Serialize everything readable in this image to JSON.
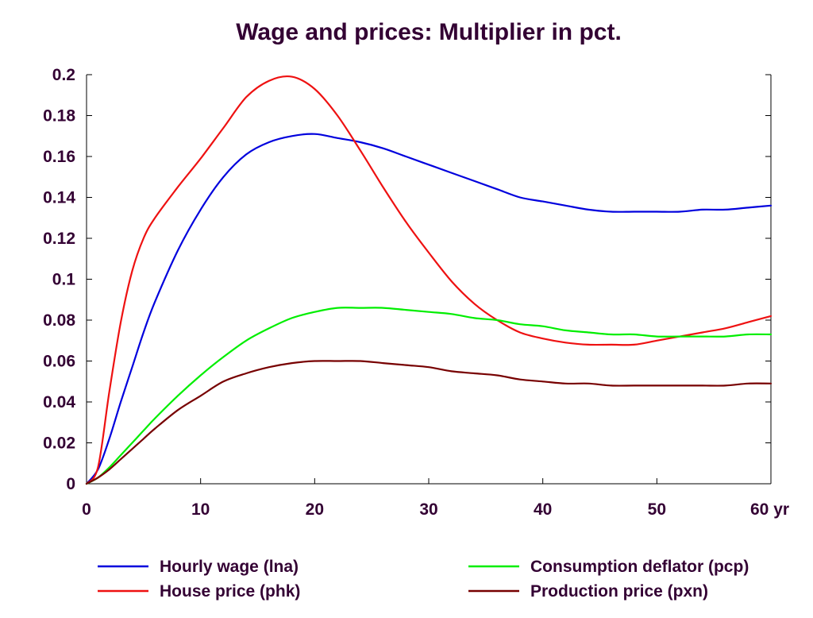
{
  "chart_data": {
    "type": "line",
    "title": "Wage and prices: Multiplier in pct.",
    "xlabel": "",
    "ylabel": "",
    "xlim": [
      0,
      60
    ],
    "ylim": [
      0,
      0.2
    ],
    "x_ticks": [
      0,
      10,
      20,
      30,
      40,
      50,
      60
    ],
    "x_tick_labels": [
      "0",
      "10",
      "20",
      "30",
      "40",
      "50",
      "60 yr"
    ],
    "y_ticks": [
      0,
      0.02,
      0.04,
      0.06,
      0.08,
      0.1,
      0.12,
      0.14,
      0.16,
      0.18,
      0.2
    ],
    "y_tick_labels": [
      "0",
      "0.02",
      "0.04",
      "0.06",
      "0.08",
      "0.1",
      "0.12",
      "0.14",
      "0.16",
      "0.18",
      "0.2"
    ],
    "grid": false,
    "legend_position": "bottom",
    "x": [
      0,
      1,
      2,
      3,
      4,
      5,
      6,
      8,
      10,
      12,
      14,
      16,
      18,
      20,
      22,
      24,
      26,
      28,
      30,
      32,
      34,
      36,
      38,
      40,
      42,
      44,
      46,
      48,
      50,
      52,
      54,
      56,
      58,
      60
    ],
    "series": [
      {
        "name": "Hourly wage (lna)",
        "color": "#0000dd",
        "values": [
          0,
          0.007,
          0.022,
          0.04,
          0.057,
          0.074,
          0.089,
          0.114,
          0.134,
          0.15,
          0.161,
          0.167,
          0.17,
          0.171,
          0.169,
          0.167,
          0.164,
          0.16,
          0.156,
          0.152,
          0.148,
          0.144,
          0.14,
          0.138,
          0.136,
          0.134,
          0.133,
          0.133,
          0.133,
          0.133,
          0.134,
          0.134,
          0.135,
          0.136
        ]
      },
      {
        "name": "House price (phk)",
        "color": "#ee1111",
        "values": [
          0,
          0.008,
          0.045,
          0.079,
          0.104,
          0.12,
          0.13,
          0.145,
          0.159,
          0.174,
          0.189,
          0.197,
          0.199,
          0.193,
          0.18,
          0.163,
          0.145,
          0.128,
          0.113,
          0.099,
          0.088,
          0.08,
          0.074,
          0.071,
          0.069,
          0.068,
          0.068,
          0.068,
          0.07,
          0.072,
          0.074,
          0.076,
          0.079,
          0.082
        ]
      },
      {
        "name": "Consumption deflator (pcp)",
        "color": "#00ee00",
        "values": [
          0,
          0.003,
          0.008,
          0.014,
          0.02,
          0.026,
          0.032,
          0.043,
          0.053,
          0.062,
          0.07,
          0.076,
          0.081,
          0.084,
          0.086,
          0.086,
          0.086,
          0.085,
          0.084,
          0.083,
          0.081,
          0.08,
          0.078,
          0.077,
          0.075,
          0.074,
          0.073,
          0.073,
          0.072,
          0.072,
          0.072,
          0.072,
          0.073,
          0.073
        ]
      },
      {
        "name": "Production price (pxn)",
        "color": "#770000",
        "values": [
          0,
          0.003,
          0.007,
          0.012,
          0.017,
          0.022,
          0.027,
          0.036,
          0.043,
          0.05,
          0.054,
          0.057,
          0.059,
          0.06,
          0.06,
          0.06,
          0.059,
          0.058,
          0.057,
          0.055,
          0.054,
          0.053,
          0.051,
          0.05,
          0.049,
          0.049,
          0.048,
          0.048,
          0.048,
          0.048,
          0.048,
          0.048,
          0.049,
          0.049
        ]
      }
    ]
  }
}
